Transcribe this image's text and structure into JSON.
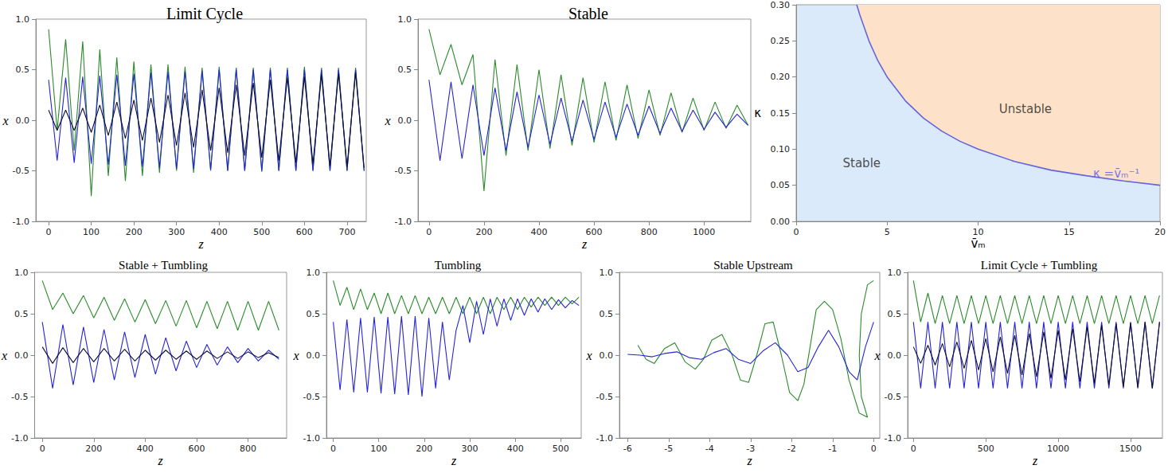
{
  "chart_data": [
    {
      "type": "line",
      "title": "Limit Cycle",
      "x_label": "z",
      "y_label": "x",
      "xlim": [
        -30,
        745
      ],
      "ylim": [
        -1,
        1
      ],
      "xticks": [
        0,
        100,
        200,
        300,
        400,
        500,
        600,
        700
      ],
      "yticks": [
        {
          "value": -1,
          "label": "-1.0"
        },
        {
          "value": -0.5,
          "label": "-0.5"
        },
        {
          "value": 0,
          "label": "0.0"
        },
        {
          "value": 0.5,
          "label": "0.5"
        },
        {
          "value": 1,
          "label": "1.0"
        }
      ],
      "grid": false,
      "x": [
        0,
        20,
        40,
        60,
        80,
        100,
        120,
        140,
        160,
        180,
        200,
        220,
        240,
        260,
        280,
        300,
        320,
        340,
        360,
        380,
        400,
        420,
        440,
        460,
        480,
        500,
        520,
        540,
        560,
        580,
        600,
        620,
        640,
        660,
        680,
        700,
        720,
        740
      ],
      "series": [
        {
          "color": "#2a8a2a",
          "values": [
            0.9,
            -0.1,
            0.8,
            -0.3,
            0.78,
            -0.75,
            0.7,
            -0.55,
            0.62,
            -0.6,
            0.58,
            -0.55,
            0.55,
            -0.52,
            0.55,
            -0.5,
            0.53,
            -0.52,
            0.52,
            -0.5,
            0.53,
            -0.5,
            0.52,
            -0.5,
            0.52,
            -0.51,
            0.52,
            -0.5,
            0.52,
            -0.5,
            0.53,
            -0.5,
            0.52,
            -0.5,
            0.52,
            -0.5,
            0.52,
            -0.5
          ]
        },
        {
          "color": "#2424d8",
          "values": [
            0.4,
            -0.4,
            0.42,
            -0.42,
            0.43,
            -0.43,
            0.44,
            -0.44,
            0.45,
            -0.45,
            0.46,
            -0.46,
            0.47,
            -0.47,
            0.48,
            -0.48,
            0.48,
            -0.48,
            0.49,
            -0.49,
            0.5,
            -0.5,
            0.5,
            -0.5,
            0.5,
            -0.5,
            0.5,
            -0.5,
            0.5,
            -0.5,
            0.5,
            -0.5,
            0.5,
            -0.5,
            0.5,
            -0.5,
            0.5,
            -0.5
          ]
        },
        {
          "color": "#101030",
          "values": [
            0.1,
            -0.1,
            0.1,
            -0.1,
            0.12,
            -0.12,
            0.15,
            -0.15,
            0.18,
            -0.18,
            0.2,
            -0.2,
            0.22,
            -0.22,
            0.25,
            -0.25,
            0.27,
            -0.27,
            0.3,
            -0.3,
            0.32,
            -0.32,
            0.35,
            -0.35,
            0.37,
            -0.37,
            0.4,
            -0.4,
            0.42,
            -0.42,
            0.43,
            -0.43,
            0.45,
            -0.45,
            0.46,
            -0.46,
            0.47,
            -0.47
          ]
        }
      ]
    },
    {
      "type": "line",
      "title": "Stable",
      "x_label": "z",
      "y_label": "x",
      "xlim": [
        -40,
        1170
      ],
      "ylim": [
        -1,
        1
      ],
      "xticks": [
        0,
        200,
        400,
        600,
        800,
        1000
      ],
      "yticks": [
        {
          "value": -1,
          "label": "-1.0"
        },
        {
          "value": -0.5,
          "label": "-0.5"
        },
        {
          "value": 0,
          "label": "0.0"
        },
        {
          "value": 0.5,
          "label": "0.5"
        },
        {
          "value": 1,
          "label": "1.0"
        }
      ],
      "grid": false,
      "x": [
        0,
        40,
        80,
        120,
        160,
        200,
        240,
        280,
        320,
        360,
        400,
        440,
        480,
        520,
        560,
        600,
        640,
        680,
        720,
        760,
        800,
        840,
        880,
        920,
        960,
        1000,
        1040,
        1080,
        1120,
        1160
      ],
      "series": [
        {
          "color": "#2a8a2a",
          "values": [
            0.9,
            0.45,
            0.75,
            0.35,
            0.65,
            -0.7,
            0.6,
            -0.35,
            0.55,
            -0.3,
            0.5,
            -0.28,
            0.45,
            -0.25,
            0.42,
            -0.22,
            0.38,
            -0.2,
            0.35,
            -0.18,
            0.3,
            -0.15,
            0.27,
            -0.12,
            0.22,
            -0.1,
            0.18,
            -0.08,
            0.15,
            -0.05
          ]
        },
        {
          "color": "#2424d8",
          "values": [
            0.4,
            -0.4,
            0.38,
            -0.38,
            0.35,
            -0.35,
            0.32,
            -0.3,
            0.28,
            -0.27,
            0.25,
            -0.24,
            0.22,
            -0.21,
            0.2,
            -0.19,
            0.18,
            -0.17,
            0.16,
            -0.15,
            0.14,
            -0.13,
            0.12,
            -0.11,
            0.1,
            -0.09,
            0.08,
            -0.07,
            0.06,
            -0.05
          ]
        }
      ]
    },
    {
      "type": "line",
      "x_label": "v̄ₘ",
      "y_label": "κ",
      "xlim": [
        0,
        20
      ],
      "ylim": [
        0,
        0.3
      ],
      "xticks": [
        0,
        5,
        10,
        15,
        20
      ],
      "yticks": [
        {
          "value": 0,
          "label": "0.00"
        },
        {
          "value": 0.05,
          "label": "0.05"
        },
        {
          "value": 0.1,
          "label": "0.10"
        },
        {
          "value": 0.15,
          "label": "0.15"
        },
        {
          "value": 0.2,
          "label": "0.20"
        },
        {
          "value": 0.25,
          "label": "0.25"
        },
        {
          "value": 0.3,
          "label": "0.30"
        }
      ],
      "grid": false,
      "regions": [
        {
          "label": "Stable",
          "color": "#dbeafa",
          "fill": "below",
          "x": 3.6,
          "y": 0.08
        },
        {
          "label": "Unstable",
          "color": "#fde2c9",
          "fill": "above",
          "x": 12.6,
          "y": 0.155
        }
      ],
      "annotations": [
        {
          "text": "κ =v̄ₘ⁻¹",
          "x": 17.6,
          "y": 0.066,
          "color": "#5a5ae0"
        }
      ],
      "series": [
        {
          "color": "#6464e0",
          "x": [
            3.33,
            3.5,
            4,
            4.5,
            5,
            6,
            7,
            8,
            9,
            10,
            12,
            14,
            16,
            18,
            20
          ],
          "values": [
            0.3,
            0.286,
            0.25,
            0.222,
            0.2,
            0.167,
            0.143,
            0.125,
            0.111,
            0.1,
            0.083,
            0.071,
            0.063,
            0.056,
            0.05
          ]
        }
      ]
    },
    {
      "type": "line",
      "title": "Stable + Tumbling",
      "x_label": "z",
      "y_label": "x",
      "xlim": [
        -30,
        950
      ],
      "ylim": [
        -1,
        1
      ],
      "xticks": [
        0,
        200,
        400,
        600,
        800
      ],
      "yticks": [
        {
          "value": -1,
          "label": "-1.0"
        },
        {
          "value": -0.5,
          "label": "-0.5"
        },
        {
          "value": 0,
          "label": "0.0"
        },
        {
          "value": 0.5,
          "label": "0.5"
        },
        {
          "value": 1,
          "label": "1.0"
        }
      ],
      "grid": false,
      "x": [
        0,
        40,
        80,
        120,
        160,
        200,
        240,
        280,
        320,
        360,
        400,
        440,
        480,
        520,
        560,
        600,
        640,
        680,
        720,
        760,
        800,
        840,
        880,
        920
      ],
      "series": [
        {
          "color": "#2a8a2a",
          "values": [
            0.9,
            0.55,
            0.75,
            0.5,
            0.72,
            0.45,
            0.7,
            0.42,
            0.68,
            0.4,
            0.67,
            0.38,
            0.66,
            0.35,
            0.66,
            0.33,
            0.65,
            0.32,
            0.65,
            0.3,
            0.65,
            0.3,
            0.65,
            0.3
          ]
        },
        {
          "color": "#2424d8",
          "values": [
            0.4,
            -0.4,
            0.37,
            -0.36,
            0.34,
            -0.33,
            0.31,
            -0.3,
            0.28,
            -0.27,
            0.25,
            -0.23,
            0.21,
            -0.19,
            0.17,
            -0.15,
            0.13,
            -0.12,
            0.1,
            -0.09,
            0.08,
            -0.07,
            0.06,
            -0.05
          ]
        },
        {
          "color": "#101030",
          "values": [
            0.1,
            -0.1,
            0.09,
            -0.09,
            0.08,
            -0.08,
            0.08,
            -0.07,
            0.07,
            -0.07,
            0.06,
            -0.06,
            0.06,
            -0.05,
            0.05,
            -0.05,
            0.05,
            -0.04,
            0.04,
            -0.04,
            0.04,
            -0.03,
            0.03,
            -0.03
          ]
        }
      ]
    },
    {
      "type": "line",
      "title": "Tumbling",
      "x_label": "z",
      "y_label": "x",
      "xlim": [
        -15,
        545
      ],
      "ylim": [
        -1,
        1
      ],
      "xticks": [
        0,
        100,
        200,
        300,
        400,
        500
      ],
      "yticks": [
        {
          "value": -1,
          "label": "-1.0"
        },
        {
          "value": -0.5,
          "label": "-0.5"
        },
        {
          "value": 0,
          "label": "0.0"
        },
        {
          "value": 0.5,
          "label": "0.5"
        },
        {
          "value": 1,
          "label": "1.0"
        }
      ],
      "grid": false,
      "x": [
        0,
        15,
        30,
        45,
        60,
        75,
        90,
        105,
        120,
        135,
        150,
        165,
        180,
        195,
        210,
        225,
        240,
        255,
        270,
        285,
        300,
        315,
        330,
        345,
        360,
        375,
        390,
        405,
        420,
        435,
        450,
        465,
        480,
        495,
        510,
        525,
        540
      ],
      "series": [
        {
          "color": "#2a8a2a",
          "values": [
            0.9,
            0.6,
            0.82,
            0.55,
            0.8,
            0.55,
            0.75,
            0.5,
            0.75,
            0.5,
            0.72,
            0.5,
            0.72,
            0.5,
            0.7,
            0.5,
            0.7,
            0.5,
            0.7,
            0.5,
            0.7,
            0.5,
            0.7,
            0.5,
            0.7,
            0.55,
            0.7,
            0.55,
            0.7,
            0.58,
            0.7,
            0.6,
            0.7,
            0.6,
            0.7,
            0.62,
            0.7
          ]
        },
        {
          "color": "#2424d8",
          "values": [
            0.4,
            -0.42,
            0.43,
            -0.45,
            0.45,
            -0.45,
            0.46,
            -0.46,
            0.46,
            -0.47,
            0.47,
            -0.48,
            0.47,
            -0.5,
            0.45,
            -0.4,
            0.4,
            -0.3,
            0.3,
            0.6,
            0.15,
            0.65,
            0.25,
            0.68,
            0.35,
            0.68,
            0.42,
            0.68,
            0.48,
            0.68,
            0.52,
            0.68,
            0.55,
            0.67,
            0.57,
            0.66,
            0.6
          ]
        }
      ]
    },
    {
      "type": "line",
      "title": "Stable Upstream",
      "x_label": "z",
      "y_label": "x",
      "xlim": [
        -6.2,
        0.15
      ],
      "ylim": [
        -1,
        1
      ],
      "xticks": [
        -6,
        -5,
        -4,
        -3,
        -2,
        -1,
        0
      ],
      "yticks": [
        {
          "value": -1,
          "label": "-1.0"
        },
        {
          "value": -0.5,
          "label": "-0.5"
        },
        {
          "value": 0,
          "label": "0.0"
        },
        {
          "value": 0.5,
          "label": "0.5"
        },
        {
          "value": 1,
          "label": "1.0"
        }
      ],
      "grid": false,
      "series": [
        {
          "color": "#2a8a2a",
          "x": [
            0,
            -0.15,
            -0.3,
            -0.35,
            -0.3,
            -0.15,
            -0.35,
            -0.6,
            -0.8,
            -1.0,
            -1.2,
            -1.4,
            -1.55,
            -1.7,
            -1.85,
            -2.05,
            -2.25,
            -2.45,
            -2.65,
            -2.85,
            -3.05,
            -3.25,
            -3.45,
            -3.7,
            -3.95,
            -4.15,
            -4.35,
            -4.6,
            -4.85,
            -5.1,
            -5.35,
            -5.55,
            -5.75
          ],
          "values": [
            0.9,
            0.85,
            0.5,
            0,
            -0.5,
            -0.75,
            -0.7,
            -0.3,
            0.2,
            0.55,
            0.65,
            0.55,
            0.1,
            -0.35,
            -0.55,
            -0.45,
            0,
            0.4,
            0.38,
            0,
            -0.33,
            -0.3,
            0,
            0.25,
            0.18,
            -0.05,
            -0.17,
            -0.08,
            0.15,
            0.08,
            -0.1,
            -0.05,
            0.12
          ]
        },
        {
          "color": "#2424d8",
          "x": [
            0,
            -0.2,
            -0.4,
            -0.6,
            -0.85,
            -1.1,
            -1.35,
            -1.6,
            -1.85,
            -2.1,
            -2.4,
            -2.7,
            -3.0,
            -3.3,
            -3.6,
            -3.9,
            -4.2,
            -4.5,
            -4.8,
            -5.1,
            -5.4,
            -5.7,
            -6.0
          ],
          "values": [
            0.4,
            0.1,
            -0.3,
            -0.2,
            0.1,
            0.3,
            0.1,
            -0.15,
            -0.2,
            0,
            0.15,
            0.05,
            -0.1,
            -0.05,
            0.08,
            0.03,
            -0.05,
            -0.03,
            0.04,
            0.02,
            -0.02,
            0,
            0.01
          ]
        }
      ]
    },
    {
      "type": "line",
      "title": "Limit Cycle + Tumbling",
      "x_label": "z",
      "y_label": "x",
      "xlim": [
        -40,
        1720
      ],
      "ylim": [
        -1,
        1
      ],
      "xticks": [
        0,
        500,
        1000,
        1500
      ],
      "yticks": [
        {
          "value": -1,
          "label": "-1.0"
        },
        {
          "value": -0.5,
          "label": "-0.5"
        },
        {
          "value": 0,
          "label": "0.0"
        },
        {
          "value": 0.5,
          "label": "0.5"
        },
        {
          "value": 1,
          "label": "1.0"
        }
      ],
      "grid": false,
      "x": [
        0,
        50,
        100,
        150,
        200,
        250,
        300,
        350,
        400,
        450,
        500,
        550,
        600,
        650,
        700,
        750,
        800,
        850,
        900,
        950,
        1000,
        1050,
        1100,
        1150,
        1200,
        1250,
        1300,
        1350,
        1400,
        1450,
        1500,
        1550,
        1600,
        1650,
        1700
      ],
      "series": [
        {
          "color": "#2a8a2a",
          "values": [
            0.9,
            0.4,
            0.75,
            0.38,
            0.72,
            0.38,
            0.72,
            0.38,
            0.72,
            0.38,
            0.72,
            0.38,
            0.72,
            0.38,
            0.72,
            0.38,
            0.72,
            0.38,
            0.72,
            0.38,
            0.72,
            0.38,
            0.72,
            0.38,
            0.72,
            0.38,
            0.72,
            0.38,
            0.72,
            0.38,
            0.72,
            0.38,
            0.72,
            0.38,
            0.72
          ]
        },
        {
          "color": "#2424d8",
          "values": [
            0.4,
            -0.4,
            0.4,
            -0.4,
            0.4,
            -0.4,
            0.4,
            -0.4,
            0.4,
            -0.4,
            0.4,
            -0.4,
            0.4,
            -0.4,
            0.4,
            -0.4,
            0.4,
            -0.4,
            0.4,
            -0.4,
            0.4,
            -0.4,
            0.4,
            -0.4,
            0.4,
            -0.4,
            0.4,
            -0.4,
            0.4,
            -0.4,
            0.4,
            -0.4,
            0.4,
            -0.4,
            0.4
          ]
        },
        {
          "color": "#101030",
          "values": [
            0.1,
            -0.1,
            0.12,
            -0.12,
            0.14,
            -0.14,
            0.16,
            -0.16,
            0.18,
            -0.18,
            0.2,
            -0.2,
            0.22,
            -0.22,
            0.24,
            -0.24,
            0.26,
            -0.26,
            0.28,
            -0.28,
            0.3,
            -0.3,
            0.32,
            -0.32,
            0.34,
            -0.34,
            0.36,
            -0.36,
            0.38,
            -0.38,
            0.39,
            -0.39,
            0.4,
            -0.4,
            0.4
          ]
        }
      ]
    }
  ]
}
